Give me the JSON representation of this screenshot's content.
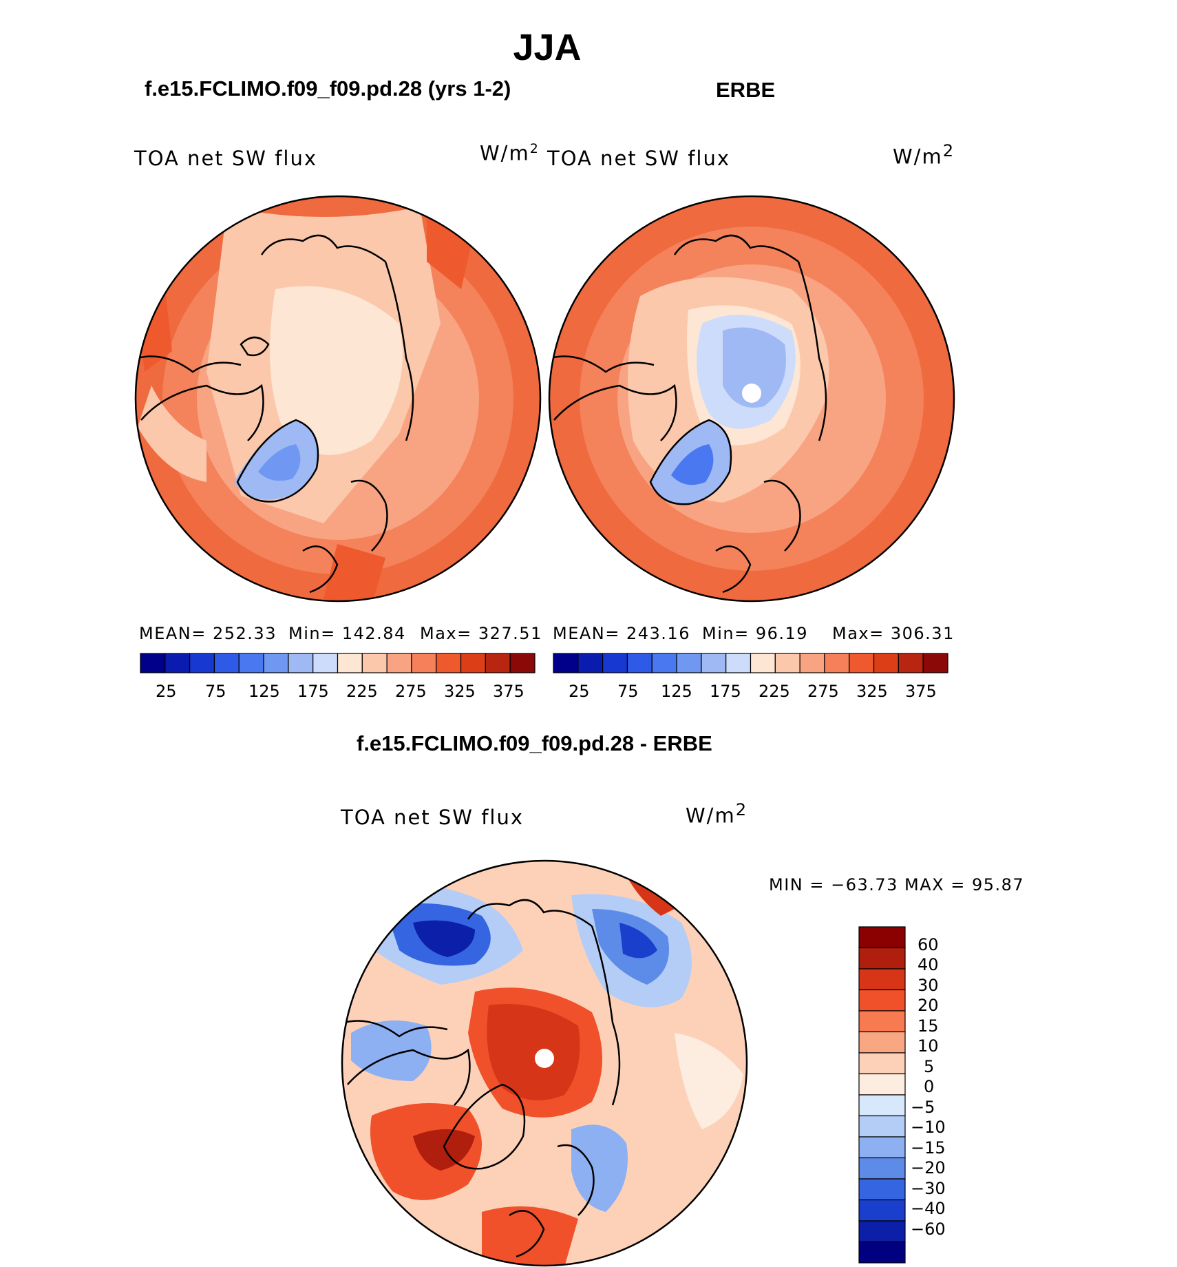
{
  "season": "JJA",
  "variable_label": "TOA net SW flux",
  "units": "W/m",
  "units_sup": "2",
  "panels": {
    "model": {
      "title": "f.e15.FCLIMO.f09_f09.pd.28 (yrs 1-2)",
      "mean_text": "MEAN= 252.33",
      "min_text": "Min= 142.84",
      "max_text": "Max= 327.51"
    },
    "obs": {
      "title": "ERBE",
      "mean_text": "MEAN= 243.16",
      "min_text": "Min=   96.19",
      "max_text": "Max= 306.31"
    },
    "diff": {
      "title": "f.e15.FCLIMO.f09_f09.pd.28 - ERBE",
      "minmax_text": "MIN = −63.73 MAX =   95.87"
    }
  },
  "colorbar_abs": {
    "tick_labels": [
      "25",
      "75",
      "125",
      "175",
      "225",
      "275",
      "325",
      "375"
    ],
    "colors": [
      "#00008b",
      "#0a1cb0",
      "#1739d2",
      "#2f5ae8",
      "#4a78f0",
      "#7098f2",
      "#9fb9f5",
      "#cddcfa",
      "#fde6d4",
      "#fbc8ac",
      "#f8a482",
      "#f5805a",
      "#ee5a2e",
      "#dc3f18",
      "#b82510",
      "#8b0a08"
    ]
  },
  "colorbar_diff": {
    "tick_labels": [
      "60",
      "40",
      "30",
      "20",
      "15",
      "10",
      "5",
      "0",
      "−5",
      "−10",
      "−15",
      "−20",
      "−30",
      "−40",
      "−60"
    ],
    "colors": [
      "#8b0000",
      "#b01e0e",
      "#d73518",
      "#f0502a",
      "#f87a50",
      "#f9a682",
      "#fcd1b8",
      "#fdece0",
      "#d7e8fb",
      "#b4cdf7",
      "#8db0f3",
      "#5d8be8",
      "#3565e0",
      "#1a3fcc",
      "#0b1fa8",
      "#000080"
    ]
  }
}
